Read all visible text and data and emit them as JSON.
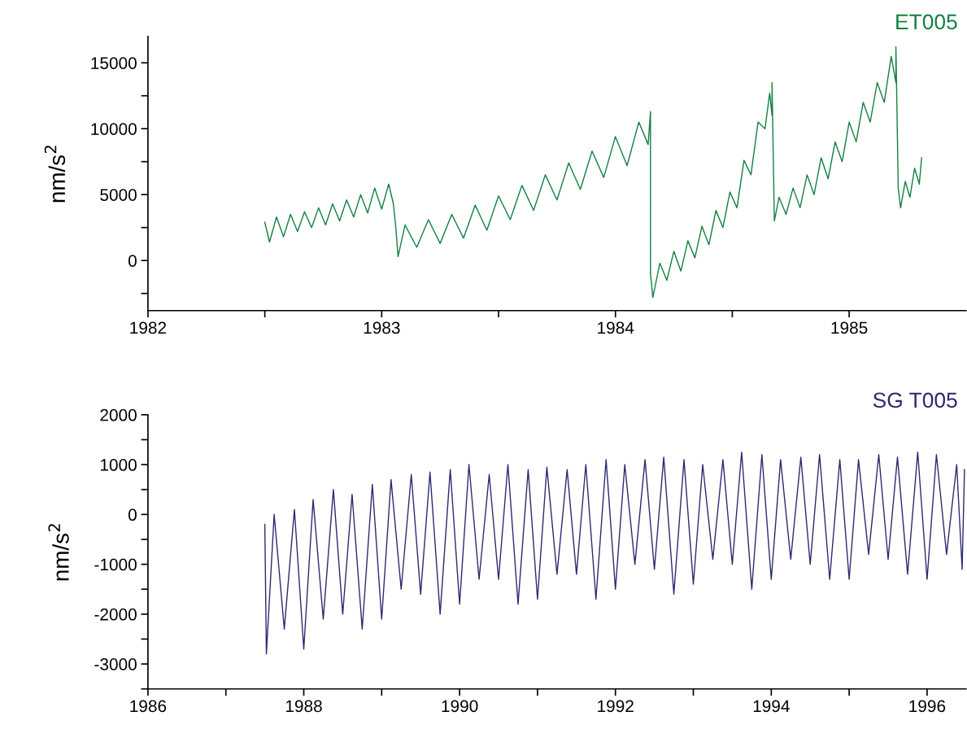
{
  "chart_data": [
    {
      "type": "line",
      "ylabel": "nm/s$^{2}$",
      "xlim": [
        1982,
        1985.5
      ],
      "xticks": [
        1982,
        {
          "value": 1982.5,
          "label": null
        },
        1983,
        {
          "value": 1983.5,
          "label": null
        },
        1984,
        {
          "value": 1984.5,
          "label": null
        },
        1985
      ],
      "ylim": [
        -3800,
        17000
      ],
      "yticks": [
        {
          "value": -2500,
          "label": null
        },
        0,
        {
          "value": 2500,
          "label": null
        },
        5000,
        {
          "value": 7500,
          "label": null
        },
        10000,
        {
          "value": 12500,
          "label": null
        },
        15000
      ],
      "grid": false,
      "legend": false,
      "series": [
        {
          "name": "ET005",
          "color": "#11813f",
          "x": [
            1982.5,
            1982.52,
            1982.55,
            1982.58,
            1982.61,
            1982.64,
            1982.67,
            1982.7,
            1982.73,
            1982.76,
            1982.79,
            1982.82,
            1982.85,
            1982.88,
            1982.91,
            1982.94,
            1982.97,
            1983.0,
            1983.03,
            1983.05,
            1983.06,
            1983.07,
            1983.1,
            1983.15,
            1983.2,
            1983.25,
            1983.3,
            1983.35,
            1983.4,
            1983.45,
            1983.5,
            1983.55,
            1983.6,
            1983.65,
            1983.7,
            1983.75,
            1983.8,
            1983.85,
            1983.9,
            1983.95,
            1984.0,
            1984.05,
            1984.1,
            1984.14,
            1984.15,
            1984.15,
            1984.16,
            1984.19,
            1984.22,
            1984.25,
            1984.28,
            1984.31,
            1984.34,
            1984.37,
            1984.4,
            1984.43,
            1984.46,
            1984.49,
            1984.52,
            1984.55,
            1984.58,
            1984.61,
            1984.64,
            1984.66,
            1984.67,
            1984.67,
            1984.68,
            1984.7,
            1984.73,
            1984.76,
            1984.79,
            1984.82,
            1984.85,
            1984.88,
            1984.91,
            1984.94,
            1984.97,
            1985.0,
            1985.03,
            1985.06,
            1985.09,
            1985.12,
            1985.15,
            1985.18,
            1985.2,
            1985.2,
            1985.21,
            1985.22,
            1985.24,
            1985.26,
            1985.28,
            1985.3,
            1985.31
          ],
          "values": [
            2900,
            1400,
            3300,
            1800,
            3500,
            2200,
            3700,
            2500,
            4000,
            2700,
            4300,
            3000,
            4600,
            3300,
            5000,
            3600,
            5500,
            3900,
            5800,
            4300,
            2600,
            300,
            2700,
            1000,
            3100,
            1300,
            3500,
            1700,
            4200,
            2300,
            4900,
            3100,
            5700,
            3800,
            6500,
            4600,
            7400,
            5400,
            8300,
            6300,
            9400,
            7200,
            10500,
            8800,
            11300,
            -1000,
            -2800,
            -200,
            -1500,
            700,
            -800,
            1500,
            200,
            2600,
            1200,
            3800,
            2500,
            5200,
            4000,
            7600,
            6500,
            10500,
            10000,
            12700,
            11000,
            13500,
            3000,
            4800,
            3500,
            5500,
            4000,
            6500,
            5000,
            7800,
            6200,
            9000,
            7500,
            10500,
            9000,
            12000,
            10500,
            13500,
            12000,
            15500,
            13500,
            16200,
            5500,
            4000,
            6000,
            4800,
            7000,
            5800,
            7800
          ]
        }
      ]
    },
    {
      "type": "line",
      "ylabel": "nm/s$^{2}$",
      "xlim": [
        1986,
        1996.5
      ],
      "xticks": [
        1986,
        {
          "value": 1987,
          "label": null
        },
        1988,
        {
          "value": 1989,
          "label": null
        },
        1990,
        {
          "value": 1991,
          "label": null
        },
        1992,
        {
          "value": 1993,
          "label": null
        },
        1994,
        {
          "value": 1995,
          "label": null
        },
        1996
      ],
      "ylim": [
        -3500,
        2000
      ],
      "yticks": [
        {
          "value": -3500,
          "label": null
        },
        -3000,
        {
          "value": -2500,
          "label": null
        },
        -2000,
        {
          "value": -1500,
          "label": null
        },
        -1000,
        {
          "value": -500,
          "label": null
        },
        0,
        {
          "value": 500,
          "label": null
        },
        1000,
        {
          "value": 1500,
          "label": null
        },
        2000
      ],
      "grid": false,
      "legend": false,
      "series": [
        {
          "name": "SG T005",
          "color": "#2a2a72",
          "x": [
            1987.5,
            1987.52,
            1987.62,
            1987.75,
            1987.88,
            1988.0,
            1988.12,
            1988.25,
            1988.38,
            1988.5,
            1988.62,
            1988.75,
            1988.88,
            1989.0,
            1989.12,
            1989.25,
            1989.38,
            1989.5,
            1989.62,
            1989.75,
            1989.88,
            1990.0,
            1990.12,
            1990.25,
            1990.38,
            1990.5,
            1990.62,
            1990.75,
            1990.88,
            1991.0,
            1991.12,
            1991.25,
            1991.38,
            1991.5,
            1991.62,
            1991.75,
            1991.88,
            1992.0,
            1992.12,
            1992.25,
            1992.38,
            1992.5,
            1992.62,
            1992.75,
            1992.88,
            1993.0,
            1993.12,
            1993.25,
            1993.38,
            1993.5,
            1993.62,
            1993.75,
            1993.88,
            1994.0,
            1994.12,
            1994.25,
            1994.38,
            1994.5,
            1994.62,
            1994.75,
            1994.88,
            1995.0,
            1995.12,
            1995.25,
            1995.38,
            1995.5,
            1995.62,
            1995.75,
            1995.88,
            1996.0,
            1996.12,
            1996.25,
            1996.38,
            1996.45,
            1996.48
          ],
          "values": [
            -200,
            -2800,
            0,
            -2300,
            100,
            -2700,
            300,
            -2100,
            500,
            -2000,
            400,
            -2300,
            600,
            -2100,
            700,
            -1500,
            800,
            -1600,
            850,
            -2000,
            900,
            -1800,
            1000,
            -1300,
            800,
            -1300,
            1000,
            -1800,
            900,
            -1700,
            950,
            -1200,
            900,
            -1200,
            1000,
            -1700,
            1100,
            -1500,
            1000,
            -1000,
            1100,
            -1100,
            1150,
            -1600,
            1100,
            -1400,
            1000,
            -900,
            1100,
            -1000,
            1250,
            -1500,
            1200,
            -1300,
            1100,
            -900,
            1150,
            -1000,
            1200,
            -1300,
            1100,
            -1300,
            1100,
            -800,
            1200,
            -900,
            1150,
            -1200,
            1250,
            -1300,
            1200,
            -800,
            1000,
            -1100,
            900
          ]
        }
      ]
    }
  ]
}
